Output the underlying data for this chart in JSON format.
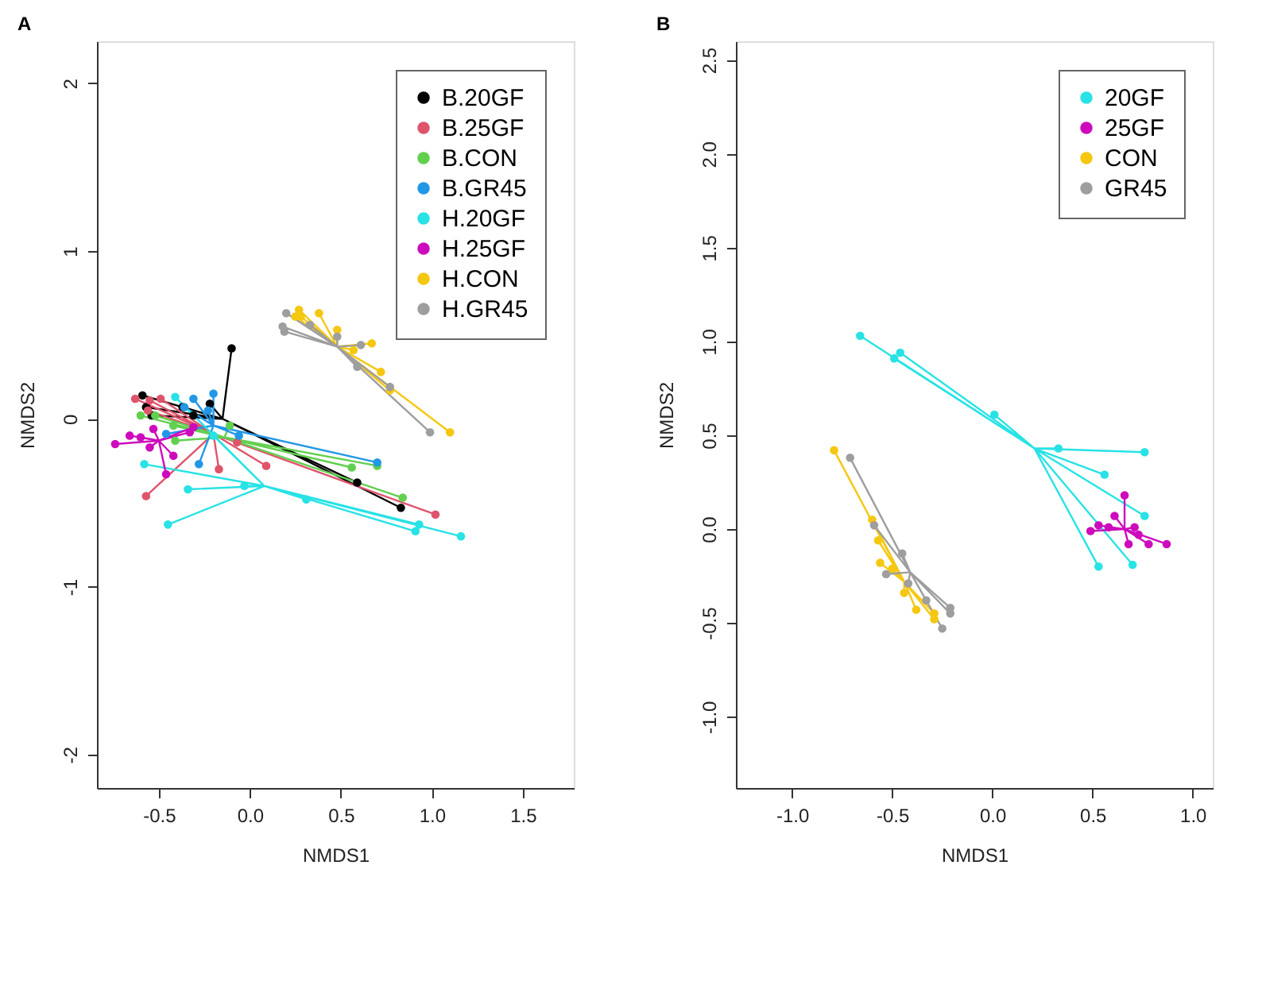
{
  "chart_data": [
    {
      "type": "scatter",
      "title": "A",
      "xlabel": "NMDS1",
      "ylabel": "NMDS2",
      "xlim": [
        -0.84,
        1.78
      ],
      "ylim": [
        -2.2,
        2.25
      ],
      "xticks": [
        {
          "value": -0.5,
          "label": "-0.5"
        },
        {
          "value": 0,
          "label": "0.0"
        },
        {
          "value": 0.5,
          "label": "0.5"
        },
        {
          "value": 1,
          "label": "1.0"
        },
        {
          "value": 1.5,
          "label": "1.5"
        }
      ],
      "yticks": [
        -2,
        -1,
        0,
        1,
        2
      ],
      "grid": false,
      "legend": "top right",
      "marker": "circle",
      "series": [
        {
          "type": "line",
          "marker": "none",
          "color": "#000000",
          "x": [
            -0.15,
            -0.59,
            -0.15,
            -0.57,
            -0.15,
            -0.54,
            -0.15,
            -0.22,
            -0.15,
            -0.1,
            -0.15,
            0.59,
            -0.15,
            0.83,
            -0.15,
            -0.37,
            -0.15,
            -0.31
          ],
          "values": [
            0.0,
            0.14,
            0.0,
            0.07,
            0.0,
            0.02,
            0.0,
            0.09,
            0.0,
            0.42,
            0.0,
            -0.38,
            0.0,
            -0.53,
            0.0,
            0.07,
            0.0,
            0.02
          ]
        },
        {
          "type": "line",
          "marker": "none",
          "color": "#df536b",
          "x": [
            -0.2,
            -0.63,
            -0.2,
            -0.55,
            -0.2,
            -0.49,
            -0.2,
            -0.56,
            -0.2,
            -0.07,
            -0.2,
            -0.17,
            -0.2,
            0.09,
            -0.2,
            -0.57,
            -0.2,
            1.02
          ],
          "values": [
            -0.09,
            0.12,
            -0.09,
            0.11,
            -0.09,
            0.12,
            -0.09,
            0.05,
            -0.09,
            -0.14,
            -0.09,
            -0.3,
            -0.09,
            -0.28,
            -0.09,
            -0.46,
            -0.09,
            -0.57
          ]
        },
        {
          "type": "line",
          "marker": "none",
          "color": "#61d04f",
          "x": [
            -0.14,
            -0.6,
            -0.14,
            -0.42,
            -0.14,
            -0.41,
            -0.14,
            -0.11,
            -0.14,
            0.56,
            -0.14,
            0.7,
            -0.14,
            0.84,
            -0.14,
            -0.52
          ],
          "values": [
            -0.11,
            0.02,
            -0.11,
            -0.04,
            -0.11,
            -0.13,
            -0.11,
            -0.04,
            -0.11,
            -0.29,
            -0.11,
            -0.28,
            -0.11,
            -0.47,
            -0.11,
            0.02
          ]
        },
        {
          "type": "line",
          "marker": "none",
          "color": "#2297e6",
          "x": [
            -0.2,
            -0.31,
            -0.2,
            -0.2,
            -0.2,
            -0.23,
            -0.2,
            -0.36,
            -0.2,
            -0.46,
            -0.2,
            -0.28,
            -0.2,
            0.7,
            -0.2,
            -0.06
          ],
          "values": [
            -0.04,
            0.12,
            -0.04,
            0.15,
            -0.04,
            0.05,
            -0.04,
            0.07,
            -0.04,
            -0.09,
            -0.04,
            -0.27,
            -0.04,
            -0.26,
            -0.04,
            -0.1
          ]
        },
        {
          "type": "line",
          "marker": "none",
          "color": "#28e2e5",
          "x": [
            0.08,
            -0.41,
            0.08,
            -0.58,
            0.08,
            -0.34,
            0.08,
            -0.03,
            0.08,
            -0.45,
            0.08,
            0.31,
            0.08,
            0.93,
            0.08,
            0.91,
            0.08,
            1.16,
            0.08,
            -0.2
          ],
          "values": [
            -0.4,
            0.13,
            -0.4,
            -0.27,
            -0.4,
            -0.42,
            -0.4,
            -0.4,
            -0.4,
            -0.63,
            -0.4,
            -0.48,
            -0.4,
            -0.63,
            -0.4,
            -0.67,
            -0.4,
            -0.7,
            -0.4,
            -0.1
          ]
        },
        {
          "type": "line",
          "marker": "none",
          "color": "#cd0bbc",
          "x": [
            -0.5,
            -0.74,
            -0.5,
            -0.66,
            -0.5,
            -0.6,
            -0.5,
            -0.53,
            -0.5,
            -0.55,
            -0.5,
            -0.42,
            -0.5,
            -0.46,
            -0.5,
            -0.33,
            -0.5,
            -0.31
          ],
          "values": [
            -0.13,
            -0.15,
            -0.13,
            -0.1,
            -0.13,
            -0.11,
            -0.13,
            -0.06,
            -0.13,
            -0.17,
            -0.13,
            -0.22,
            -0.13,
            -0.33,
            -0.13,
            -0.08,
            -0.13,
            -0.05
          ]
        },
        {
          "type": "line",
          "marker": "none",
          "color": "#f5c710",
          "x": [
            0.48,
            0.25,
            0.48,
            0.27,
            0.48,
            0.38,
            0.48,
            0.48,
            0.48,
            0.57,
            0.48,
            0.67,
            0.48,
            0.72,
            0.48,
            0.77,
            0.48,
            1.1,
            0.48,
            0.28
          ],
          "values": [
            0.43,
            0.61,
            0.43,
            0.65,
            0.43,
            0.63,
            0.43,
            0.53,
            0.43,
            0.41,
            0.43,
            0.45,
            0.43,
            0.28,
            0.43,
            0.17,
            0.43,
            -0.08,
            0.43,
            0.61
          ]
        },
        {
          "type": "line",
          "marker": "none",
          "color": "#9e9e9e",
          "x": [
            0.48,
            0.2,
            0.48,
            0.18,
            0.48,
            0.19,
            0.48,
            0.33,
            0.48,
            0.48,
            0.48,
            0.61,
            0.48,
            0.59,
            0.48,
            0.77,
            0.48,
            0.99
          ],
          "values": [
            0.43,
            0.63,
            0.43,
            0.55,
            0.43,
            0.52,
            0.43,
            0.56,
            0.43,
            0.49,
            0.43,
            0.44,
            0.43,
            0.31,
            0.43,
            0.19,
            0.43,
            -0.08
          ]
        },
        {
          "name": "B.20GF",
          "color": "#000000",
          "x": [
            -0.59,
            -0.57,
            -0.54,
            -0.22,
            -0.1,
            0.59,
            0.83,
            -0.37,
            -0.31
          ],
          "values": [
            0.14,
            0.07,
            0.02,
            0.09,
            0.42,
            -0.38,
            -0.53,
            0.07,
            0.02
          ]
        },
        {
          "name": "B.25GF",
          "color": "#df536b",
          "x": [
            -0.63,
            -0.55,
            -0.49,
            -0.56,
            -0.07,
            -0.17,
            0.09,
            -0.57,
            1.02
          ],
          "values": [
            0.12,
            0.11,
            0.12,
            0.05,
            -0.14,
            -0.3,
            -0.28,
            -0.46,
            -0.57
          ]
        },
        {
          "name": "B.CON",
          "color": "#61d04f",
          "x": [
            -0.6,
            -0.42,
            -0.41,
            -0.11,
            0.56,
            0.7,
            0.84,
            -0.52
          ],
          "values": [
            0.02,
            -0.04,
            -0.13,
            -0.04,
            -0.29,
            -0.28,
            -0.47,
            0.02
          ]
        },
        {
          "name": "B.GR45",
          "color": "#2297e6",
          "x": [
            -0.31,
            -0.2,
            -0.23,
            -0.36,
            -0.46,
            -0.28,
            0.7,
            -0.06
          ],
          "values": [
            0.12,
            0.15,
            0.05,
            0.07,
            -0.09,
            -0.27,
            -0.26,
            -0.1
          ]
        },
        {
          "name": "H.20GF",
          "color": "#28e2e5",
          "x": [
            -0.41,
            -0.58,
            -0.34,
            -0.03,
            -0.45,
            0.31,
            0.93,
            0.91,
            1.16,
            -0.2
          ],
          "values": [
            0.13,
            -0.27,
            -0.42,
            -0.4,
            -0.63,
            -0.48,
            -0.63,
            -0.67,
            -0.7,
            -0.1
          ]
        },
        {
          "name": "H.25GF",
          "color": "#cd0bbc",
          "x": [
            -0.74,
            -0.66,
            -0.6,
            -0.53,
            -0.55,
            -0.42,
            -0.46,
            -0.33,
            -0.31
          ],
          "values": [
            -0.15,
            -0.1,
            -0.11,
            -0.06,
            -0.17,
            -0.22,
            -0.33,
            -0.08,
            -0.05
          ]
        },
        {
          "name": "H.CON",
          "color": "#f5c710",
          "x": [
            0.25,
            0.27,
            0.38,
            0.48,
            0.57,
            0.67,
            0.72,
            0.77,
            1.1,
            0.28
          ],
          "values": [
            0.61,
            0.65,
            0.63,
            0.53,
            0.41,
            0.45,
            0.28,
            0.17,
            -0.08,
            0.61
          ]
        },
        {
          "name": "H.GR45",
          "color": "#9e9e9e",
          "x": [
            0.2,
            0.18,
            0.19,
            0.33,
            0.48,
            0.61,
            0.59,
            0.77,
            0.99
          ],
          "values": [
            0.63,
            0.55,
            0.52,
            0.56,
            0.49,
            0.44,
            0.31,
            0.19,
            -0.08
          ]
        }
      ]
    },
    {
      "type": "scatter",
      "title": "B",
      "xlabel": "NMDS1",
      "ylabel": "NMDS2",
      "xlim": [
        -1.28,
        1.1
      ],
      "ylim": [
        -1.38,
        2.6
      ],
      "xticks": [
        {
          "value": -1,
          "label": "-1.0"
        },
        {
          "value": -0.5,
          "label": "-0.5"
        },
        {
          "value": 0,
          "label": "0.0"
        },
        {
          "value": 0.5,
          "label": "0.5"
        },
        {
          "value": 1,
          "label": "1.0"
        }
      ],
      "yticks": [
        {
          "value": -1,
          "label": "-1.0"
        },
        {
          "value": -0.5,
          "label": "-0.5"
        },
        {
          "value": 0,
          "label": "0.0"
        },
        {
          "value": 0.5,
          "label": "0.5"
        },
        {
          "value": 1,
          "label": "1.0"
        },
        {
          "value": 1.5,
          "label": "1.5"
        },
        {
          "value": 2,
          "label": "2.0"
        },
        {
          "value": 2.5,
          "label": "2.5"
        }
      ],
      "grid": false,
      "legend": "top right",
      "marker": "circle",
      "series": [
        {
          "type": "line",
          "marker": "none",
          "color": "#28e2e5",
          "x": [
            0.21,
            -0.66,
            0.21,
            -0.46,
            0.21,
            -0.49,
            0.21,
            0.01,
            0.21,
            0.33,
            0.21,
            0.76,
            0.21,
            0.56,
            0.21,
            0.76,
            0.21,
            0.53,
            0.21,
            0.7
          ],
          "values": [
            0.43,
            1.03,
            0.43,
            0.94,
            0.43,
            0.91,
            0.43,
            0.61,
            0.43,
            0.43,
            0.43,
            0.41,
            0.43,
            0.29,
            0.43,
            0.07,
            0.43,
            -0.2,
            0.43,
            -0.19
          ]
        },
        {
          "type": "line",
          "marker": "none",
          "color": "#cd0bbc",
          "x": [
            0.66,
            0.66,
            0.66,
            0.61,
            0.66,
            0.49,
            0.66,
            0.53,
            0.66,
            0.58,
            0.66,
            0.71,
            0.66,
            0.73,
            0.66,
            0.78,
            0.66,
            0.68,
            0.66,
            0.87
          ],
          "values": [
            0.0,
            0.18,
            0.0,
            0.07,
            0.0,
            -0.01,
            0.0,
            0.02,
            0.0,
            0.01,
            0.0,
            0.01,
            0.0,
            -0.03,
            0.0,
            -0.08,
            0.0,
            -0.08,
            0.0,
            -0.08
          ]
        },
        {
          "type": "line",
          "marker": "none",
          "color": "#f5c710",
          "x": [
            -0.44,
            -0.79,
            -0.44,
            -0.6,
            -0.44,
            -0.57,
            -0.44,
            -0.56,
            -0.44,
            -0.5,
            -0.44,
            -0.44,
            -0.44,
            -0.38,
            -0.44,
            -0.29,
            -0.44,
            -0.29
          ],
          "values": [
            -0.28,
            0.42,
            -0.28,
            0.05,
            -0.28,
            -0.06,
            -0.28,
            -0.18,
            -0.28,
            -0.21,
            -0.28,
            -0.34,
            -0.28,
            -0.43,
            -0.28,
            -0.48,
            -0.28,
            -0.45
          ]
        },
        {
          "type": "line",
          "marker": "none",
          "color": "#9e9e9e",
          "x": [
            -0.41,
            -0.71,
            -0.41,
            -0.59,
            -0.41,
            -0.45,
            -0.41,
            -0.53,
            -0.41,
            -0.42,
            -0.41,
            -0.33,
            -0.41,
            -0.21,
            -0.41,
            -0.21,
            -0.41,
            -0.25
          ],
          "values": [
            -0.23,
            0.38,
            -0.23,
            0.02,
            -0.23,
            -0.13,
            -0.23,
            -0.24,
            -0.23,
            -0.29,
            -0.23,
            -0.38,
            -0.23,
            -0.42,
            -0.23,
            -0.45,
            -0.23,
            -0.53
          ]
        },
        {
          "name": "20GF",
          "color": "#28e2e5",
          "x": [
            -0.66,
            -0.46,
            -0.49,
            0.01,
            0.33,
            0.76,
            0.56,
            0.76,
            0.53,
            0.7
          ],
          "values": [
            1.03,
            0.94,
            0.91,
            0.61,
            0.43,
            0.41,
            0.29,
            0.07,
            -0.2,
            -0.19
          ]
        },
        {
          "name": "25GF",
          "color": "#cd0bbc",
          "x": [
            0.66,
            0.61,
            0.49,
            0.53,
            0.58,
            0.71,
            0.73,
            0.78,
            0.68,
            0.87
          ],
          "values": [
            0.18,
            0.07,
            -0.01,
            0.02,
            0.01,
            0.01,
            -0.03,
            -0.08,
            -0.08,
            -0.08
          ]
        },
        {
          "name": "CON",
          "color": "#f5c710",
          "x": [
            -0.79,
            -0.6,
            -0.57,
            -0.56,
            -0.5,
            -0.44,
            -0.38,
            -0.29,
            -0.29
          ],
          "values": [
            0.42,
            0.05,
            -0.06,
            -0.18,
            -0.21,
            -0.34,
            -0.43,
            -0.48,
            -0.45
          ]
        },
        {
          "name": "GR45",
          "color": "#9e9e9e",
          "x": [
            -0.71,
            -0.59,
            -0.45,
            -0.53,
            -0.42,
            -0.33,
            -0.21,
            -0.21,
            -0.25
          ],
          "values": [
            0.38,
            0.02,
            -0.13,
            -0.24,
            -0.29,
            -0.38,
            -0.42,
            -0.45,
            -0.53
          ]
        }
      ]
    }
  ]
}
